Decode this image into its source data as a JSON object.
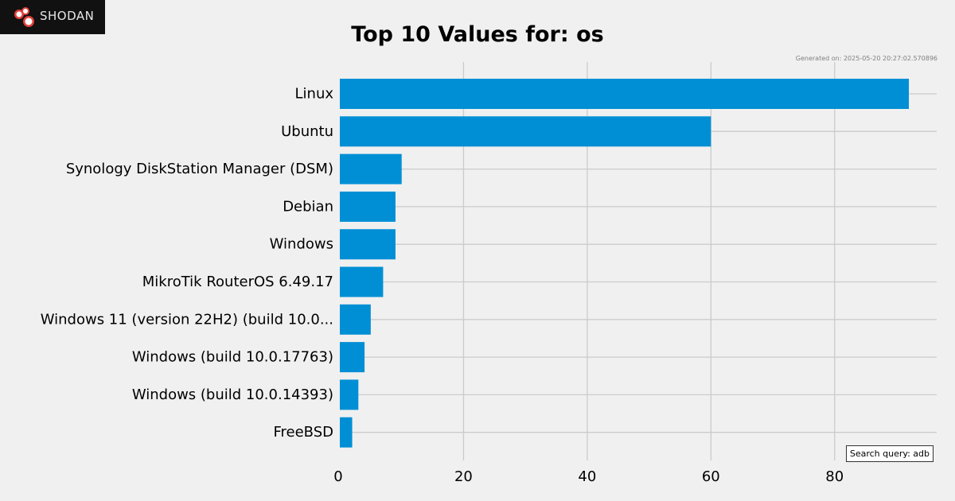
{
  "brand": {
    "name": "Shodan",
    "logo_text": "SHODAN",
    "icon": "shodan-logo-icon",
    "accent": "#e0403a"
  },
  "meta": {
    "generated": "Generated on: 2025-05-20 20:27:02.570896",
    "search_query": "Search query: adb"
  },
  "chart_data": {
    "type": "bar",
    "orientation": "horizontal",
    "title": "Top 10 Values for: os",
    "categories": [
      "Linux",
      "Ubuntu",
      "Synology DiskStation Manager (DSM)",
      "Debian",
      "Windows",
      "MikroTik RouterOS 6.49.17",
      "Windows 11 (version 22H2) (build 10.0...",
      "Windows (build 10.0.17763)",
      "Windows (build 10.0.14393)",
      "FreeBSD"
    ],
    "values": [
      92,
      60,
      10,
      9,
      9,
      7,
      5,
      4,
      3,
      2
    ],
    "xlim": [
      0,
      96.5
    ],
    "xticks": [
      0,
      20,
      40,
      60,
      80
    ],
    "grid": true,
    "bar_color": "#008fd5",
    "grid_color": "#cbcbcb",
    "background": "#f0f0f0"
  }
}
